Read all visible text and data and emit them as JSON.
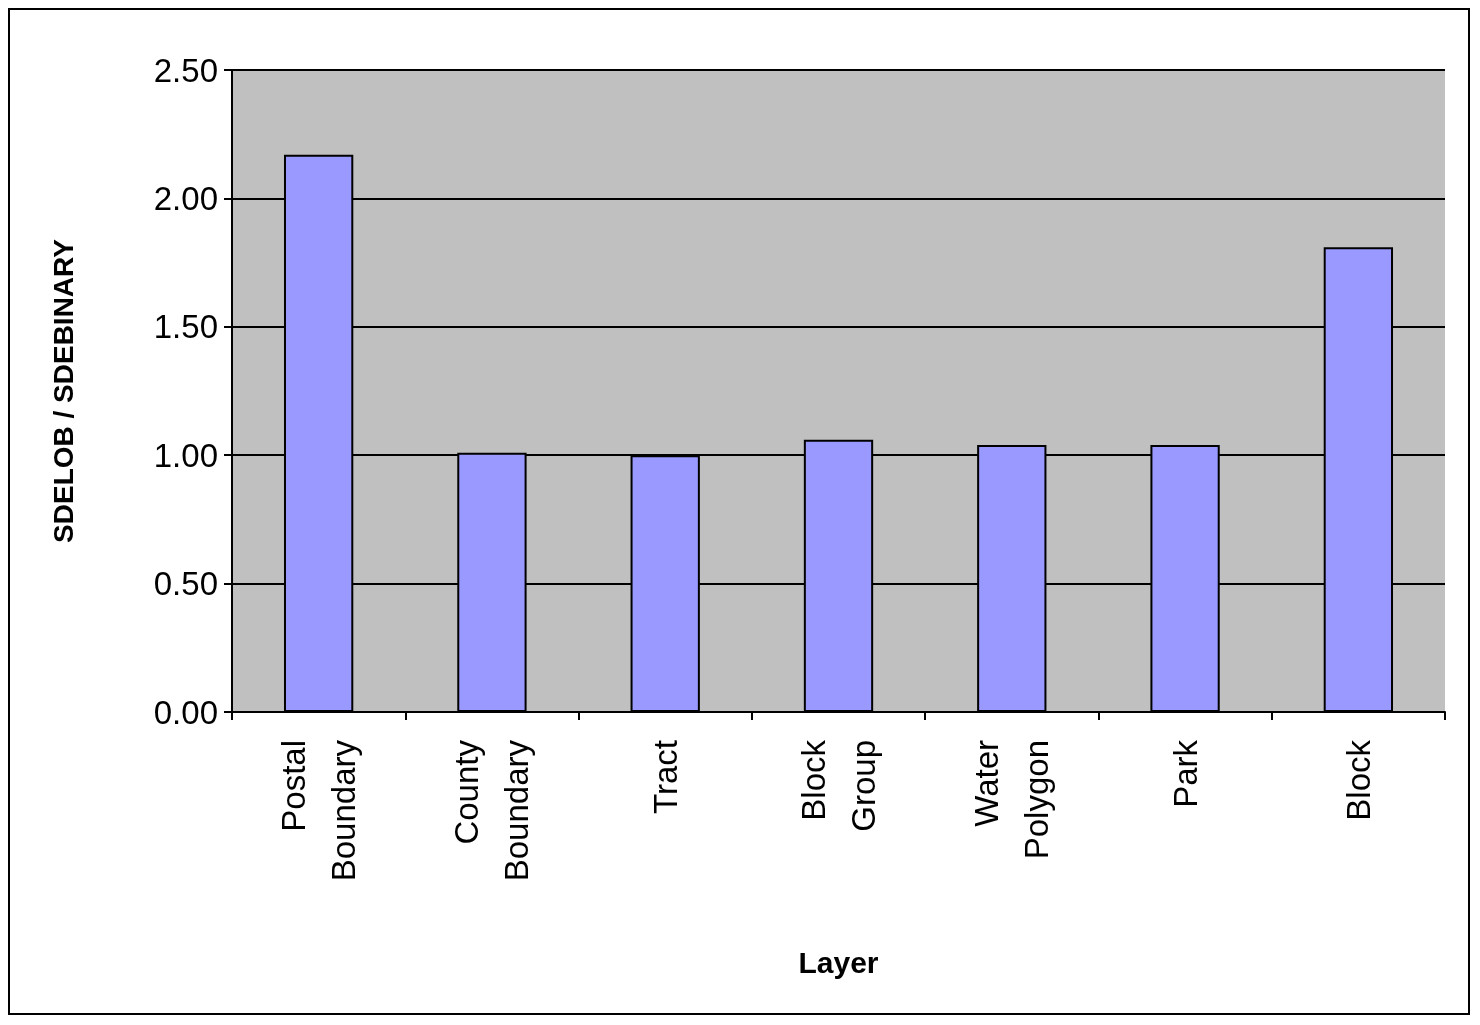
{
  "chart_data": {
    "type": "bar",
    "xlabel": "Layer",
    "ylabel": "SDELOB / SDEBINARY",
    "categories": [
      "Postal Boundary",
      "County Boundary",
      "Tract",
      "Block Group",
      "Water Polygon",
      "Park",
      "Block"
    ],
    "values": [
      2.17,
      1.01,
      1.0,
      1.06,
      1.04,
      1.04,
      1.81
    ],
    "color": "#9999ff",
    "ylim": [
      0,
      2.5
    ],
    "yticks": [
      {
        "value": 0,
        "label": "0.00"
      },
      {
        "value": 0.5,
        "label": "0.50"
      },
      {
        "value": 1,
        "label": "1.00"
      },
      {
        "value": 1.5,
        "label": "1.50"
      },
      {
        "value": 2,
        "label": "2.00"
      },
      {
        "value": 2.5,
        "label": "2.50"
      }
    ],
    "grid": "y"
  }
}
